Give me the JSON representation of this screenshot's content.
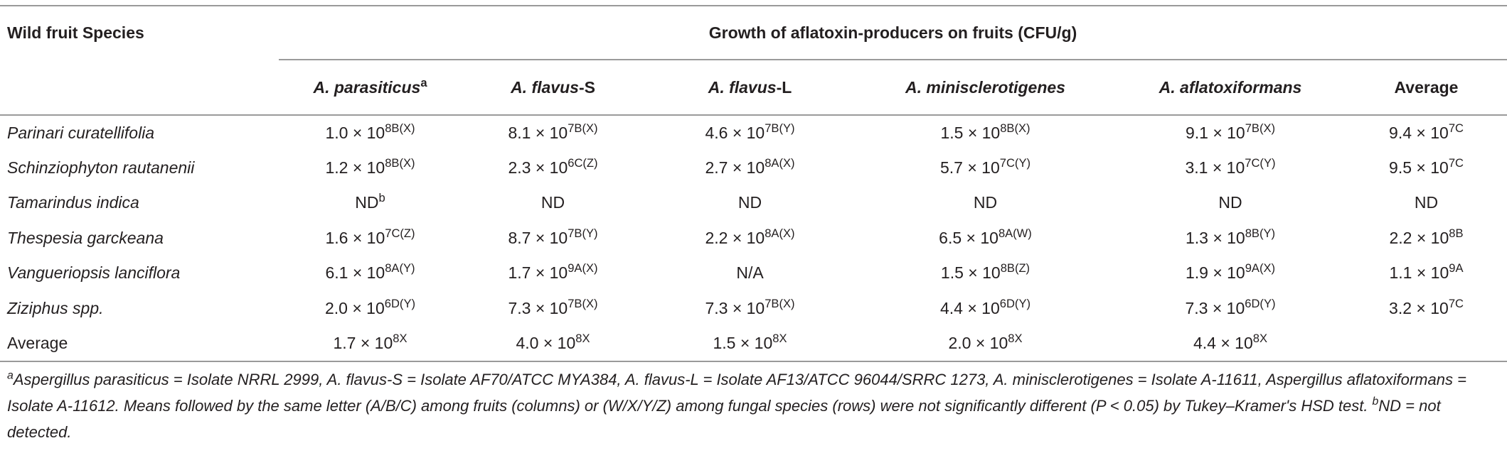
{
  "table": {
    "header": {
      "species": "Wild fruit Species",
      "group": "Growth of aflatoxin-producers on fruits (CFU/g)",
      "columns": [
        {
          "italic": "A. parasiticus",
          "sup": "a"
        },
        {
          "italic": "A. flavus",
          "text": "-S"
        },
        {
          "italic": "A. flavus",
          "text": "-L"
        },
        {
          "italic": "A. minisclerotigenes"
        },
        {
          "italic": "A. aflatoxiformans"
        },
        {
          "text": "Average"
        }
      ]
    },
    "rows": [
      {
        "species": "Parinari curatellifolia",
        "italic": true,
        "cells": [
          {
            "text": "1.0 × 10",
            "sup": "8B(X)"
          },
          {
            "text": "8.1 × 10",
            "sup": "7B(X)"
          },
          {
            "text": "4.6 × 10",
            "sup": "7B(Y)"
          },
          {
            "text": "1.5 × 10",
            "sup": "8B(X)"
          },
          {
            "text": "9.1 × 10",
            "sup": "7B(X)"
          },
          {
            "text": "9.4 × 10",
            "sup": "7C"
          }
        ]
      },
      {
        "species": "Schinziophyton rautanenii",
        "italic": true,
        "cells": [
          {
            "text": "1.2 × 10",
            "sup": "8B(X)"
          },
          {
            "text": "2.3 × 10",
            "sup": "6C(Z)"
          },
          {
            "text": "2.7 × 10",
            "sup": "8A(X)"
          },
          {
            "text": "5.7 × 10",
            "sup": "7C(Y)"
          },
          {
            "text": "3.1 × 10",
            "sup": "7C(Y)"
          },
          {
            "text": "9.5 × 10",
            "sup": "7C"
          }
        ]
      },
      {
        "species": "Tamarindus indica",
        "italic": true,
        "cells": [
          {
            "text": "ND",
            "sup": "b"
          },
          {
            "text": "ND"
          },
          {
            "text": "ND"
          },
          {
            "text": "ND"
          },
          {
            "text": "ND"
          },
          {
            "text": "ND"
          }
        ]
      },
      {
        "species": "Thespesia garckeana",
        "italic": true,
        "cells": [
          {
            "text": "1.6 × 10",
            "sup": "7C(Z)"
          },
          {
            "text": "8.7 × 10",
            "sup": "7B(Y)"
          },
          {
            "text": "2.2 × 10",
            "sup": "8A(X)"
          },
          {
            "text": "6.5 × 10",
            "sup": "8A(W)"
          },
          {
            "text": "1.3 × 10",
            "sup": "8B(Y)"
          },
          {
            "text": "2.2 × 10",
            "sup": "8B"
          }
        ]
      },
      {
        "species": "Vangueriopsis lanciflora",
        "italic": true,
        "cells": [
          {
            "text": "6.1 × 10",
            "sup": "8A(Y)"
          },
          {
            "text": "1.7 × 10",
            "sup": "9A(X)"
          },
          {
            "text": "N/A"
          },
          {
            "text": "1.5 × 10",
            "sup": "8B(Z)"
          },
          {
            "text": "1.9 × 10",
            "sup": "9A(X)"
          },
          {
            "text": "1.1 × 10",
            "sup": "9A"
          }
        ]
      },
      {
        "species": "Ziziphus spp.",
        "italic": true,
        "cells": [
          {
            "text": "2.0 × 10",
            "sup": "6D(Y)"
          },
          {
            "text": "7.3 × 10",
            "sup": "7B(X)"
          },
          {
            "text": "7.3 × 10",
            "sup": "7B(X)"
          },
          {
            "text": "4.4 × 10",
            "sup": "6D(Y)"
          },
          {
            "text": "7.3 × 10",
            "sup": "6D(Y)"
          },
          {
            "text": "3.2 × 10",
            "sup": "7C"
          }
        ]
      },
      {
        "species": "Average",
        "italic": false,
        "cells": [
          {
            "text": "1.7 × 10",
            "sup": "8X"
          },
          {
            "text": "4.0 × 10",
            "sup": "8X"
          },
          {
            "text": "1.5 × 10",
            "sup": "8X"
          },
          {
            "text": "2.0 × 10",
            "sup": "8X"
          },
          {
            "text": "4.4 × 10",
            "sup": "8X"
          }
        ]
      }
    ]
  },
  "footnote": [
    {
      "sup": "a"
    },
    {
      "text": "Aspergillus parasiticus = Isolate NRRL 2999, A. flavus-S = Isolate AF70/ATCC MYA384, A. flavus-L = Isolate AF13/ATCC 96044/SRRC 1273, A. minisclerotigenes = Isolate A-11611, Aspergillus aflatoxiformans = Isolate A-11612. Means followed by the same letter (A/B/C) among fruits (columns) or (W/X/Y/Z) among fungal species (rows) were not significantly different (P < 0.05) by Tukey–Kramer's HSD test."
    },
    {
      "sup": "b"
    },
    {
      "text": "ND = not detected."
    }
  ]
}
